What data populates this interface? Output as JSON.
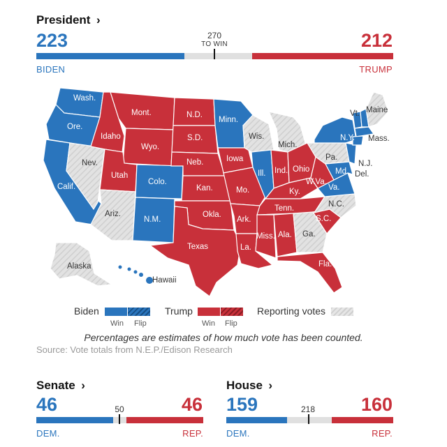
{
  "president": {
    "title": "President",
    "arrow": "›",
    "dem_count": "223",
    "rep_count": "212",
    "dem_name": "BIDEN",
    "rep_name": "TRUMP",
    "threshold": "270",
    "threshold_label": "TO WIN",
    "dem_votes": 223,
    "rep_votes": 212,
    "total": 538
  },
  "map": {
    "state_labels": [
      {
        "name": "Wash.",
        "party": "dem"
      },
      {
        "name": "Ore.",
        "party": "dem"
      },
      {
        "name": "Calif.",
        "party": "dem"
      },
      {
        "name": "Nev.",
        "party": "pending"
      },
      {
        "name": "Idaho",
        "party": "rep"
      },
      {
        "name": "Mont.",
        "party": "rep"
      },
      {
        "name": "Wyo.",
        "party": "rep"
      },
      {
        "name": "Utah",
        "party": "rep"
      },
      {
        "name": "Ariz.",
        "party": "pending"
      },
      {
        "name": "Colo.",
        "party": "dem"
      },
      {
        "name": "N.M.",
        "party": "dem"
      },
      {
        "name": "N.D.",
        "party": "rep"
      },
      {
        "name": "S.D.",
        "party": "rep"
      },
      {
        "name": "Neb.",
        "party": "rep"
      },
      {
        "name": "Kan.",
        "party": "rep"
      },
      {
        "name": "Okla.",
        "party": "rep"
      },
      {
        "name": "Texas",
        "party": "rep"
      },
      {
        "name": "Minn.",
        "party": "dem"
      },
      {
        "name": "Iowa",
        "party": "rep"
      },
      {
        "name": "Mo.",
        "party": "rep"
      },
      {
        "name": "Ark.",
        "party": "rep"
      },
      {
        "name": "La.",
        "party": "rep"
      },
      {
        "name": "Wis.",
        "party": "pending"
      },
      {
        "name": "Ill.",
        "party": "dem"
      },
      {
        "name": "Mich.",
        "party": "pending"
      },
      {
        "name": "Ind.",
        "party": "rep"
      },
      {
        "name": "Ohio",
        "party": "rep"
      },
      {
        "name": "Ky.",
        "party": "rep"
      },
      {
        "name": "Tenn.",
        "party": "rep"
      },
      {
        "name": "Miss.",
        "party": "rep"
      },
      {
        "name": "Ala.",
        "party": "rep"
      },
      {
        "name": "Ga.",
        "party": "pending"
      },
      {
        "name": "Fla.",
        "party": "rep"
      },
      {
        "name": "S.C.",
        "party": "rep"
      },
      {
        "name": "N.C.",
        "party": "pending"
      },
      {
        "name": "Va.",
        "party": "dem"
      },
      {
        "name": "W.Va.",
        "party": "rep"
      },
      {
        "name": "Pa.",
        "party": "pending"
      },
      {
        "name": "N.Y.",
        "party": "dem"
      },
      {
        "name": "Vt.",
        "party": "dem"
      },
      {
        "name": "Maine",
        "party": "pending"
      },
      {
        "name": "Mass.",
        "party": "dem"
      },
      {
        "name": "N.J.",
        "party": "dem"
      },
      {
        "name": "Md.",
        "party": "dem"
      },
      {
        "name": "Del.",
        "party": "dem"
      },
      {
        "name": "Alaska",
        "party": "pending"
      },
      {
        "name": "Hawaii",
        "party": "dem"
      }
    ]
  },
  "legend": {
    "biden": "Biden",
    "trump": "Trump",
    "reporting": "Reporting votes",
    "win": "Win",
    "flip": "Flip"
  },
  "note": "Percentages are estimates of how much vote has been counted.",
  "source": "Source: Vote totals from N.E.P./Edison Research",
  "senate": {
    "title": "Senate",
    "arrow": "›",
    "dem_count": "46",
    "rep_count": "46",
    "threshold": "50",
    "dem_label": "DEM.",
    "rep_label": "REP.",
    "dem_seats": 46,
    "rep_seats": 46,
    "total": 100
  },
  "house": {
    "title": "House",
    "arrow": "›",
    "dem_count": "159",
    "rep_count": "160",
    "threshold": "218",
    "dem_label": "DEM.",
    "rep_label": "REP.",
    "dem_seats": 159,
    "rep_seats": 160,
    "total": 435
  },
  "colors": {
    "dem": "#2a75bd",
    "rep": "#c8303a",
    "pending": "#dcdcdc",
    "neutral_bar": "#e0e0e0"
  }
}
